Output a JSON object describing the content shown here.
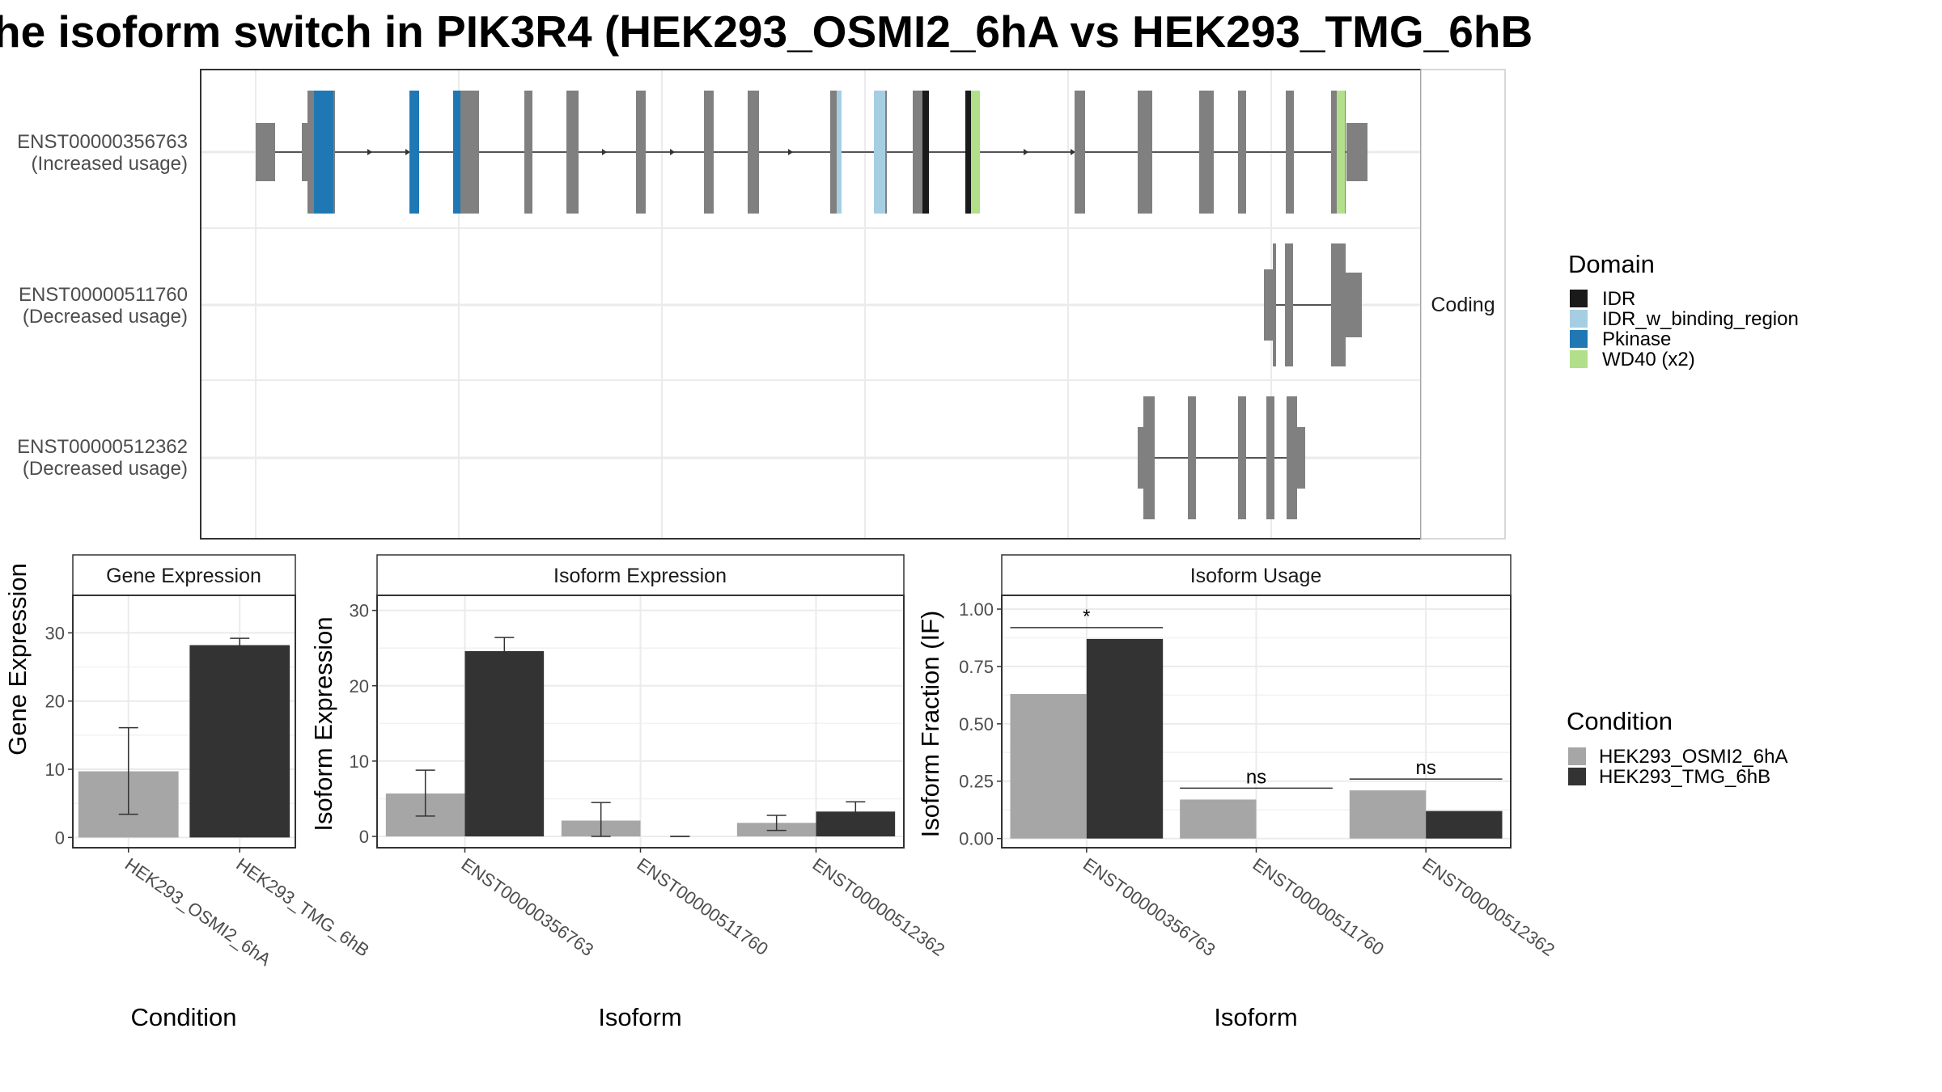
{
  "chart_data": [
    {
      "type": "transcript-structure",
      "title": "he isoform switch in PIK3R4 (HEK293_OSMI2_6hA vs HEK293_TMG_6hB",
      "facet_label": "Coding",
      "transcripts": [
        {
          "id": "ENST00000356763",
          "usage": "(Increased usage)"
        },
        {
          "id": "ENST00000511760",
          "usage": "(Decreased usage)"
        },
        {
          "id": "ENST00000512362",
          "usage": "(Decreased usage)"
        }
      ],
      "legend": {
        "title": "Domain",
        "items": [
          {
            "label": "IDR",
            "color": "#1a1a1a"
          },
          {
            "label": "IDR_w_binding_region",
            "color": "#a6cee3"
          },
          {
            "label": "Pkinase",
            "color": "#1f78b4"
          },
          {
            "label": "WD40 (x2)",
            "color": "#b2df8a"
          }
        ]
      },
      "exon_color": "#808080"
    },
    {
      "type": "bar",
      "strip_title": "Gene Expression",
      "xlabel": "Condition",
      "ylabel": "Gene Expression",
      "categories": [
        "HEK293_OSMI2_6hA",
        "HEK293_TMG_6hB"
      ],
      "values": [
        9.7,
        28.2
      ],
      "error": [
        [
          3.4,
          16.1
        ],
        [
          27.3,
          29.2
        ]
      ],
      "colors": [
        "#a6a6a6",
        "#333333"
      ],
      "ylim": [
        -1.5,
        35.5
      ],
      "yticks": [
        0,
        10,
        20,
        30
      ]
    },
    {
      "type": "bar",
      "strip_title": "Isoform Expression",
      "xlabel": "Isoform",
      "ylabel": "Isoform Expression",
      "categories": [
        "ENST00000356763",
        "ENST00000511760",
        "ENST00000512362"
      ],
      "series": [
        {
          "name": "HEK293_OSMI2_6hA",
          "color": "#a6a6a6",
          "values": [
            5.7,
            2.1,
            1.8
          ],
          "error": [
            [
              2.7,
              8.8
            ],
            [
              0.0,
              4.5
            ],
            [
              0.8,
              2.8
            ]
          ]
        },
        {
          "name": "HEK293_TMG_6hB",
          "color": "#333333",
          "values": [
            24.6,
            0.0,
            3.3
          ],
          "error": [
            [
              22.9,
              26.4
            ],
            [
              0.0,
              0.0
            ],
            [
              2.1,
              4.6
            ]
          ]
        }
      ],
      "ylim": [
        -1.5,
        32
      ],
      "yticks": [
        0,
        10,
        20,
        30
      ]
    },
    {
      "type": "bar",
      "strip_title": "Isoform Usage",
      "xlabel": "Isoform",
      "ylabel": "Isoform Fraction (IF)",
      "categories": [
        "ENST00000356763",
        "ENST00000511760",
        "ENST00000512362"
      ],
      "series": [
        {
          "name": "HEK293_OSMI2_6hA",
          "color": "#a6a6a6",
          "values": [
            0.63,
            0.17,
            0.21
          ]
        },
        {
          "name": "HEK293_TMG_6hB",
          "color": "#333333",
          "values": [
            0.87,
            0.0,
            0.12
          ]
        }
      ],
      "significance": [
        "*",
        "ns",
        "ns"
      ],
      "ylim": [
        -0.04,
        1.06
      ],
      "yticks": [
        "0.00",
        "0.25",
        "0.50",
        "0.75",
        "1.00"
      ],
      "legend": {
        "title": "Condition",
        "items": [
          {
            "label": "HEK293_OSMI2_6hA",
            "color": "#a6a6a6"
          },
          {
            "label": "HEK293_TMG_6hB",
            "color": "#333333"
          }
        ]
      }
    }
  ]
}
